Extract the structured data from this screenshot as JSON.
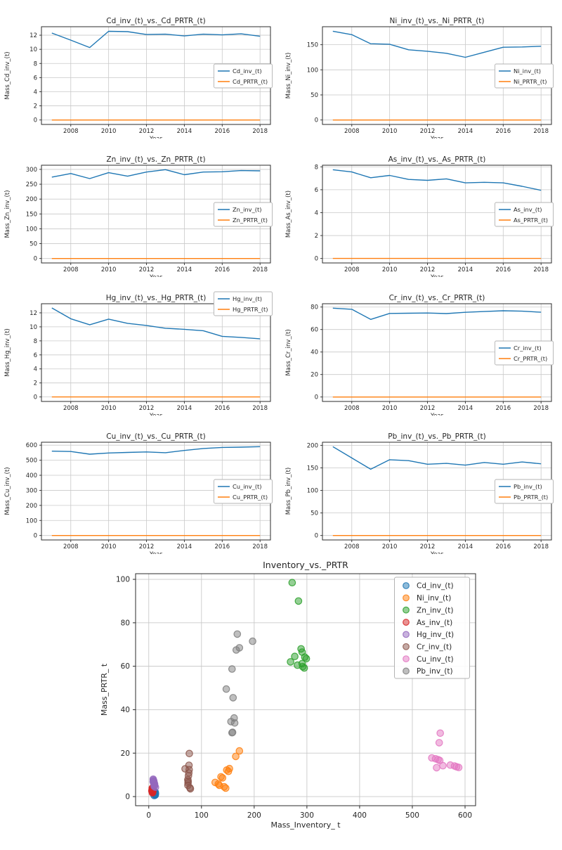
{
  "chart_data": {
    "defaults": {
      "x": [
        2007,
        2008,
        2009,
        2010,
        2011,
        2012,
        2013,
        2014,
        2015,
        2016,
        2017,
        2018
      ],
      "xticks": [
        2008,
        2010,
        2012,
        2014,
        2016,
        2018
      ],
      "xlim": [
        2006.45,
        2018.55
      ],
      "xlabel": "Year",
      "grid": true,
      "inv_color": "#1f77b4",
      "prtr_color": "#ff7f0e"
    },
    "line_charts": [
      {
        "id": "cd",
        "type": "line",
        "title": "Cd_inv_(t)_vs._Cd_PRTR_(t)",
        "ylabel": "Mass_Cd_inv_(t)",
        "yticks": [
          0,
          2,
          4,
          6,
          8,
          10,
          12
        ],
        "ylim": [
          -0.63,
          13.2
        ],
        "legend_position": "middle-right",
        "series": [
          {
            "name": "Cd_inv_(t)",
            "color": "#1f77b4",
            "values": [
              12.3,
              11.3,
              10.25,
              12.55,
              12.5,
              12.1,
              12.15,
              11.9,
              12.15,
              12.05,
              12.2,
              11.85
            ]
          },
          {
            "name": "Cd_PRTR_(t)",
            "color": "#ff7f0e",
            "values": [
              0,
              0,
              0,
              0,
              0,
              0,
              0,
              0,
              0,
              0,
              0,
              0
            ]
          }
        ]
      },
      {
        "id": "ni",
        "type": "line",
        "title": "Ni_inv_(t)_vs._Ni_PRTR_(t)",
        "ylabel": "Mass_Ni_inv_(t)",
        "yticks": [
          0,
          50,
          100,
          150
        ],
        "ylim": [
          -8.85,
          185.9
        ],
        "legend_position": "middle-right",
        "series": [
          {
            "name": "Ni_inv_(t)",
            "color": "#1f77b4",
            "values": [
              177,
              170,
              152,
              151,
              140,
              137,
              133,
              125,
              135,
              145,
              145.5,
              147
            ]
          },
          {
            "name": "Ni_PRTR_(t)",
            "color": "#ff7f0e",
            "values": [
              0,
              0,
              0,
              0,
              0,
              0,
              0,
              0,
              0,
              0,
              0,
              0
            ]
          }
        ]
      },
      {
        "id": "zn",
        "type": "line",
        "title": "Zn_inv_(t)_vs._Zn_PRTR_(t)",
        "ylabel": "Mass_Zn_inv_(t)",
        "yticks": [
          0,
          50,
          100,
          150,
          200,
          250,
          300
        ],
        "ylim": [
          -15,
          314
        ],
        "legend_position": "middle-right",
        "series": [
          {
            "name": "Zn_inv_(t)",
            "color": "#1f77b4",
            "values": [
              274,
              286,
              269,
              289,
              277,
              291,
              299,
              282,
              291,
              292,
              296,
              295
            ]
          },
          {
            "name": "Zn_PRTR_(t)",
            "color": "#ff7f0e",
            "values": [
              0,
              0,
              0,
              0,
              0,
              0,
              0,
              0,
              0,
              0,
              0,
              0
            ]
          }
        ]
      },
      {
        "id": "as",
        "type": "line",
        "title": "As_inv_(t)_vs._As_PRTR_(t)",
        "ylabel": "Mass_As_inv_(t)",
        "yticks": [
          0,
          2,
          4,
          6,
          8
        ],
        "ylim": [
          -0.39,
          8.14
        ],
        "legend_position": "middle-right",
        "series": [
          {
            "name": "As_inv_(t)",
            "color": "#1f77b4",
            "values": [
              7.75,
              7.55,
              7.05,
              7.25,
              6.9,
              6.82,
              6.95,
              6.6,
              6.65,
              6.6,
              6.3,
              5.95
            ]
          },
          {
            "name": "As_PRTR_(t)",
            "color": "#ff7f0e",
            "values": [
              0,
              0,
              0,
              0,
              0,
              0,
              0,
              0,
              0,
              0,
              0,
              0
            ]
          }
        ]
      },
      {
        "id": "hg",
        "type": "line",
        "title": "Hg_inv_(t)_vs._Hg_PRTR_(t)",
        "ylabel": "Mass_Hg_inv_(t)",
        "yticks": [
          0,
          2,
          4,
          6,
          8,
          10,
          12
        ],
        "ylim": [
          -0.64,
          13.3
        ],
        "legend_position": "top-right",
        "series": [
          {
            "name": "Hg_inv_(t)",
            "color": "#1f77b4",
            "values": [
              12.7,
              11.15,
              10.3,
              11.1,
              10.5,
              10.2,
              9.8,
              9.65,
              9.45,
              8.65,
              8.5,
              8.3
            ]
          },
          {
            "name": "Hg_PRTR_(t)",
            "color": "#ff7f0e",
            "values": [
              0,
              0,
              0,
              0,
              0,
              0,
              0,
              0,
              0,
              0,
              0,
              0
            ]
          }
        ]
      },
      {
        "id": "cr",
        "type": "line",
        "title": "Cr_inv_(t)_vs._Cr_PRTR_(t)",
        "ylabel": "Mass_Cr_inv_(t)",
        "yticks": [
          0,
          20,
          40,
          60,
          80
        ],
        "ylim": [
          -3.95,
          82.95
        ],
        "legend_position": "middle-right",
        "series": [
          {
            "name": "Cr_inv_(t)",
            "color": "#1f77b4",
            "values": [
              79,
              78,
              69,
              74.3,
              74.5,
              74.7,
              74.2,
              75.3,
              76,
              76.7,
              76.3,
              75.4
            ]
          },
          {
            "name": "Cr_PRTR_(t)",
            "color": "#ff7f0e",
            "values": [
              0,
              0,
              0,
              0,
              0,
              0,
              0,
              0,
              0,
              0,
              0,
              0
            ]
          }
        ]
      },
      {
        "id": "cu",
        "type": "line",
        "title": "Cu_inv_(t)_vs._Cu_PRTR_(t)",
        "ylabel": "Mass_Cu_inv_(t)",
        "yticks": [
          0,
          100,
          200,
          300,
          400,
          500,
          600
        ],
        "ylim": [
          -29.5,
          619.5
        ],
        "legend_position": "middle-right",
        "series": [
          {
            "name": "Cu_inv_(t)",
            "color": "#1f77b4",
            "values": [
              560,
              558,
              540,
              548,
              552,
              555,
              550,
              565,
              578,
              585,
              587,
              590
            ]
          },
          {
            "name": "Cu_PRTR_(t)",
            "color": "#ff7f0e",
            "values": [
              0,
              0,
              0,
              0,
              0,
              0,
              0,
              0,
              0,
              0,
              0,
              0
            ]
          }
        ]
      },
      {
        "id": "pb",
        "type": "line",
        "title": "Pb_inv_(t)_vs._Pb_PRTR_(t)",
        "ylabel": "Mass_Pb_inv_(t)",
        "yticks": [
          0,
          50,
          100,
          150,
          200
        ],
        "ylim": [
          -9.85,
          206.85
        ],
        "legend_position": "middle-right",
        "series": [
          {
            "name": "Pb_inv_(t)",
            "color": "#1f77b4",
            "values": [
              197,
              172,
              147,
              168,
              166,
              158,
              160,
              156,
              162,
              158,
              163,
              159
            ]
          },
          {
            "name": "Pb_PRTR_(t)",
            "color": "#ff7f0e",
            "values": [
              0,
              0,
              0,
              0,
              0,
              0,
              0,
              0,
              0,
              0,
              0,
              0
            ]
          }
        ]
      }
    ],
    "scatter": {
      "type": "scatter",
      "title": "Inventory_vs._PRTR",
      "xlabel": "Mass_Inventory_ t",
      "ylabel": "Mass_PRTR_ t",
      "xticks": [
        0,
        100,
        200,
        300,
        400,
        500,
        600
      ],
      "yticks": [
        0,
        20,
        40,
        60,
        80,
        100
      ],
      "xlim": [
        -25,
        620
      ],
      "ylim": [
        -4.2,
        102.6
      ],
      "legend_position": "top-right",
      "series": [
        {
          "name": "Cd_inv_(t)",
          "color": "#1f77b4",
          "points": [
            [
              12.3,
              0.7
            ],
            [
              11.3,
              1.1
            ],
            [
              10.3,
              0.5
            ],
            [
              12.6,
              1.6
            ],
            [
              12.5,
              1.2
            ],
            [
              12.1,
              0.9
            ],
            [
              12.2,
              1.4
            ],
            [
              11.9,
              1.0
            ],
            [
              12.2,
              1.8
            ],
            [
              12.1,
              1.3
            ],
            [
              12.2,
              2.1
            ],
            [
              11.9,
              1.5
            ]
          ]
        },
        {
          "name": "Ni_inv_(t)",
          "color": "#ff7f0e",
          "points": [
            [
              172,
              21
            ],
            [
              165,
              18.5
            ],
            [
              153,
              12.9
            ],
            [
              151,
              11.6
            ],
            [
              137,
              9.1
            ],
            [
              126,
              6.5
            ],
            [
              132,
              5.8
            ],
            [
              134,
              5.2
            ],
            [
              143,
              4.5
            ],
            [
              146,
              3.9
            ],
            [
              140,
              8.6
            ],
            [
              148,
              12.2
            ]
          ]
        },
        {
          "name": "Zn_inv_(t)",
          "color": "#2ca02c",
          "points": [
            [
              272,
              98.5
            ],
            [
              284,
              90
            ],
            [
              269,
              62
            ],
            [
              289,
              68
            ],
            [
              277,
              64.5
            ],
            [
              291,
              66.5
            ],
            [
              299,
              63.5
            ],
            [
              282,
              60.5
            ],
            [
              291,
              61.2
            ],
            [
              292,
              59.8
            ],
            [
              296,
              64.2
            ],
            [
              295,
              59.2
            ]
          ]
        },
        {
          "name": "As_inv_(t)",
          "color": "#d62728",
          "points": [
            [
              7.75,
              2.4
            ],
            [
              7.55,
              2.0
            ],
            [
              7.05,
              1.7
            ],
            [
              7.25,
              3.2
            ],
            [
              6.9,
              2.7
            ],
            [
              6.82,
              2.2
            ],
            [
              6.95,
              3.6
            ],
            [
              6.6,
              2.9
            ],
            [
              6.65,
              2.5
            ],
            [
              6.6,
              3.9
            ],
            [
              6.3,
              3.0
            ],
            [
              5.95,
              2.6
            ]
          ]
        },
        {
          "name": "Hg_inv_(t)",
          "color": "#9467bd",
          "points": [
            [
              12.7,
              4.3
            ],
            [
              11.15,
              5.1
            ],
            [
              10.3,
              4.7
            ],
            [
              11.1,
              5.8
            ],
            [
              10.5,
              5.5
            ],
            [
              10.2,
              6.3
            ],
            [
              9.8,
              6.8
            ],
            [
              9.65,
              6.1
            ],
            [
              9.45,
              7.2
            ],
            [
              8.65,
              7.6
            ],
            [
              8.5,
              8.0
            ],
            [
              8.3,
              6.9
            ]
          ]
        },
        {
          "name": "Cr_inv_(t)",
          "color": "#8c564b",
          "points": [
            [
              79,
              3.6
            ],
            [
              78,
              4.1
            ],
            [
              69,
              12.8
            ],
            [
              74.3,
              5.2
            ],
            [
              74.5,
              6.3
            ],
            [
              74.7,
              7.1
            ],
            [
              74.2,
              7.8
            ],
            [
              75.3,
              9.6
            ],
            [
              76,
              10.9
            ],
            [
              76.7,
              12.4
            ],
            [
              76.3,
              14.4
            ],
            [
              77,
              19.8
            ]
          ]
        },
        {
          "name": "Cu_inv_(t)",
          "color": "#e377c2",
          "points": [
            [
              553,
              29.2
            ],
            [
              551,
              24.8
            ],
            [
              537,
              17.8
            ],
            [
              544,
              17.4
            ],
            [
              549,
              17.0
            ],
            [
              552,
              16.6
            ],
            [
              546,
              13.3
            ],
            [
              558,
              14.2
            ],
            [
              572,
              14.5
            ],
            [
              580,
              14.1
            ],
            [
              584,
              13.7
            ],
            [
              588,
              13.4
            ]
          ]
        },
        {
          "name": "Pb_inv_(t)",
          "color": "#7f7f7f",
          "points": [
            [
              197,
              71.5
            ],
            [
              172,
              68.5
            ],
            [
              147,
              49.5
            ],
            [
              168,
              74.8
            ],
            [
              166,
              67.5
            ],
            [
              158,
              58.7
            ],
            [
              160,
              45.5
            ],
            [
              156,
              34.5
            ],
            [
              162,
              36.2
            ],
            [
              158,
              29.4
            ],
            [
              163,
              33.9
            ],
            [
              159,
              29.6
            ]
          ]
        }
      ]
    }
  }
}
